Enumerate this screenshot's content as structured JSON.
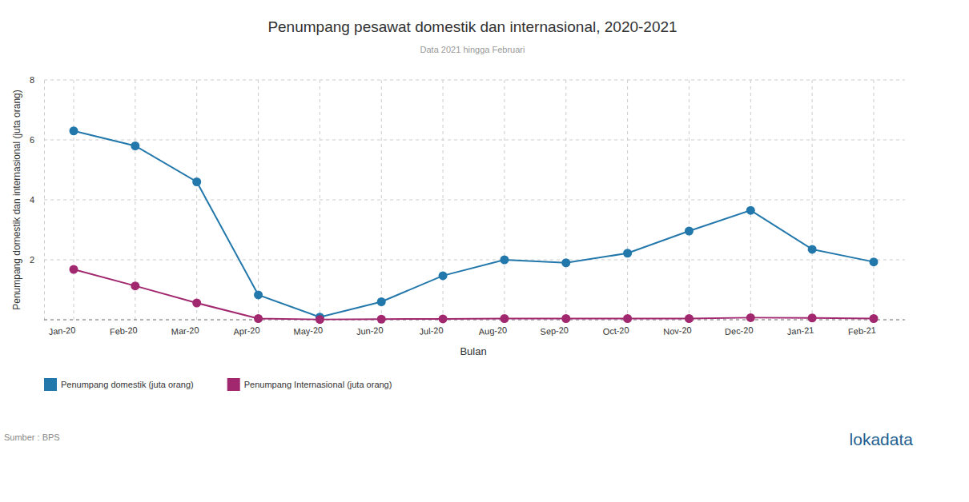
{
  "chart_data": {
    "type": "line",
    "title": "Penumpang pesawat domestik dan internasional, 2020-2021",
    "subtitle": "Data 2021 hingga Februari",
    "x_label": "Bulan",
    "y_label": "Penumpang domestik dan internasional (juta orang)",
    "categories": [
      "Jan-20",
      "Feb-20",
      "Mar-20",
      "Apr-20",
      "May-20",
      "Jun-20",
      "Jul-20",
      "Aug-20",
      "Sep-20",
      "Oct-20",
      "Nov-20",
      "Dec-20",
      "Jan-21",
      "Feb-21"
    ],
    "series": [
      {
        "name": "Penumpang domestik (juta orang)",
        "color": "#2277ab",
        "marker": "circle",
        "values": [
          6.3,
          5.8,
          4.6,
          0.83,
          0.09,
          0.6,
          1.47,
          2.0,
          1.9,
          2.22,
          2.96,
          3.65,
          2.35,
          1.93
        ]
      },
      {
        "name": "Penumpang Internasional (juta orang)",
        "color": "#a1276f",
        "marker": "circle",
        "values": [
          1.68,
          1.13,
          0.56,
          0.04,
          0.01,
          0.02,
          0.03,
          0.04,
          0.04,
          0.04,
          0.04,
          0.07,
          0.06,
          0.04
        ]
      }
    ],
    "ylim": [
      0,
      8
    ],
    "yticks": [
      2,
      4,
      6,
      8
    ],
    "grid": true,
    "legend": "bottom-left",
    "source": "Sumber : BPS",
    "logo": "lokadata"
  }
}
